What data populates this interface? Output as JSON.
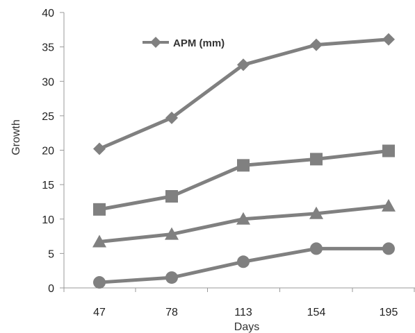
{
  "chart_data": {
    "type": "line",
    "xlabel": "Days",
    "ylabel": "Growth",
    "categories": [
      "47",
      "78",
      "113",
      "154",
      "195"
    ],
    "ylim": [
      0,
      40
    ],
    "yticks": [
      "0",
      "5",
      "10",
      "15",
      "20",
      "25",
      "30",
      "35",
      "40"
    ],
    "grid": false,
    "legend": {
      "placement": "top-left",
      "entries": [
        "APM (mm)"
      ]
    },
    "line_color": "#808080",
    "series": [
      {
        "name": "APM (mm)",
        "marker": "diamond",
        "values": [
          20.2,
          24.7,
          32.4,
          35.3,
          36.1
        ]
      },
      {
        "marker": "square",
        "values": [
          11.4,
          13.3,
          17.8,
          18.7,
          19.9
        ]
      },
      {
        "marker": "triangle",
        "values": [
          6.7,
          7.8,
          10.0,
          10.8,
          11.9
        ]
      },
      {
        "marker": "circle",
        "values": [
          0.8,
          1.5,
          3.8,
          5.7,
          5.7
        ]
      }
    ]
  }
}
